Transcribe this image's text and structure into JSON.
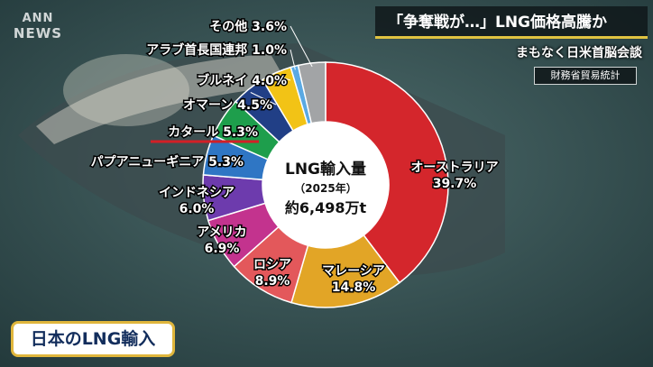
{
  "logo": {
    "line1": "ANN",
    "line2": "NEWS"
  },
  "headline": "「争奪戦が…」LNG価格高騰か",
  "subheadline": "まもなく日米首脳会談",
  "source": "財務省貿易統計",
  "bottom_title": "日本のLNG輸入",
  "colors": {
    "accent": "#e0c341",
    "underline": "#d21f26",
    "title_text": "#122d5c"
  },
  "chart_data": {
    "type": "pie",
    "donut": true,
    "center_label": {
      "line1": "LNG輸入量",
      "line2": "（2025年）",
      "line3": "約6,498万t"
    },
    "unit": "%",
    "slices": [
      {
        "label": "オーストラリア",
        "value": 39.7,
        "value_text": "39.7%",
        "color": "#d4262c"
      },
      {
        "label": "マレーシア",
        "value": 14.8,
        "value_text": "14.8%",
        "color": "#e2a526"
      },
      {
        "label": "ロシア",
        "value": 8.9,
        "value_text": "8.9%",
        "color": "#e3585b"
      },
      {
        "label": "アメリカ",
        "value": 6.9,
        "value_text": "6.9%",
        "color": "#c3338e"
      },
      {
        "label": "インドネシア",
        "value": 6.0,
        "value_text": "6.0%",
        "color": "#6d3bad"
      },
      {
        "label": "パプアニューギニア",
        "value": 5.3,
        "value_text": "5.3%",
        "color": "#2f76c4"
      },
      {
        "label": "カタール",
        "value": 5.3,
        "value_text": "5.3%",
        "color": "#1e9e4c",
        "highlighted": true
      },
      {
        "label": "オマーン",
        "value": 4.5,
        "value_text": "4.5%",
        "color": "#213f86"
      },
      {
        "label": "ブルネイ",
        "value": 4.0,
        "value_text": "4.0%",
        "color": "#f2c316"
      },
      {
        "label": "アラブ首長国連邦",
        "value": 1.0,
        "value_text": "1.0%",
        "color": "#5aa9e3"
      },
      {
        "label": "その他",
        "value": 3.6,
        "value_text": "3.6%",
        "color": "#a2a4a6"
      }
    ]
  }
}
